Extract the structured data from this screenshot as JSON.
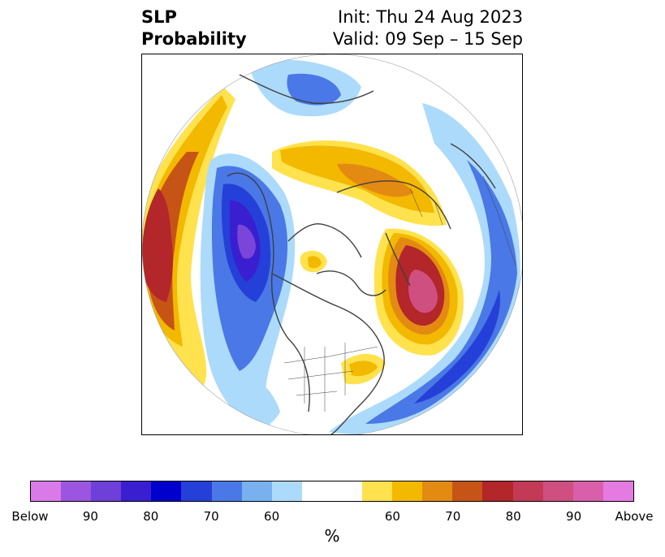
{
  "title": {
    "left_line1": "SLP",
    "left_line2": "Probability",
    "right_line1": "Init: Thu 24 Aug 2023",
    "right_line2": "Valid: 09 Sep – 15 Sep"
  },
  "colorbar": {
    "unit": "%",
    "colors": [
      "#d97ae8",
      "#9b55e0",
      "#6e3fd9",
      "#3a1fd1",
      "#0000cc",
      "#2540d8",
      "#4a78e6",
      "#78b0f0",
      "#acdafb",
      "#ffffff",
      "#ffffff",
      "#ffe24d",
      "#f3b800",
      "#e38a12",
      "#c65416",
      "#b3262a",
      "#c23a55",
      "#cf4f80",
      "#d95faa",
      "#e57ae0"
    ],
    "tick_labels": [
      "Below",
      "90",
      "80",
      "70",
      "60",
      "60",
      "70",
      "80",
      "90",
      "Above"
    ]
  },
  "map": {
    "projection": "north-polar-stereographic",
    "legend_colors": {
      "below_extreme": "#7b45d9",
      "below_strong": "#2c2fd3",
      "below_moderate": "#4c7fe5",
      "below_weak": "#abd8fa",
      "above_weak": "#ffe24d",
      "above_moderate": "#f3b800",
      "above_strong": "#d86a18",
      "above_extreme": "#b3262a",
      "above_peak": "#cf4f80"
    }
  }
}
